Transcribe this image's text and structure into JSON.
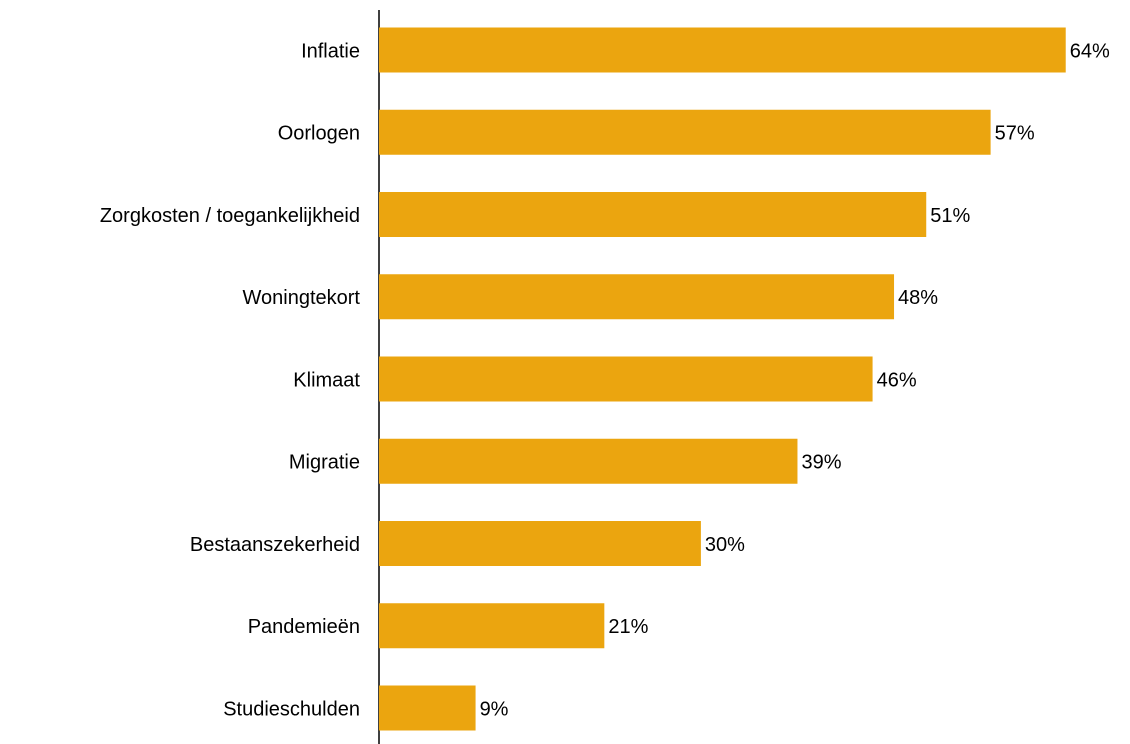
{
  "chart_data": {
    "type": "hbar",
    "categories": [
      "Inflatie",
      "Oorlogen",
      "Zorgkosten / toegankelijkheid",
      "Woningtekort",
      "Klimaat",
      "Migratie",
      "Bestaanszekerheid",
      "Pandemieën",
      "Studieschulden"
    ],
    "values": [
      64,
      57,
      51,
      48,
      46,
      39,
      30,
      21,
      9
    ],
    "value_labels": [
      "64%",
      "57%",
      "51%",
      "48%",
      "46%",
      "39%",
      "30%",
      "21%",
      "9%"
    ],
    "color": "#eba50f"
  }
}
